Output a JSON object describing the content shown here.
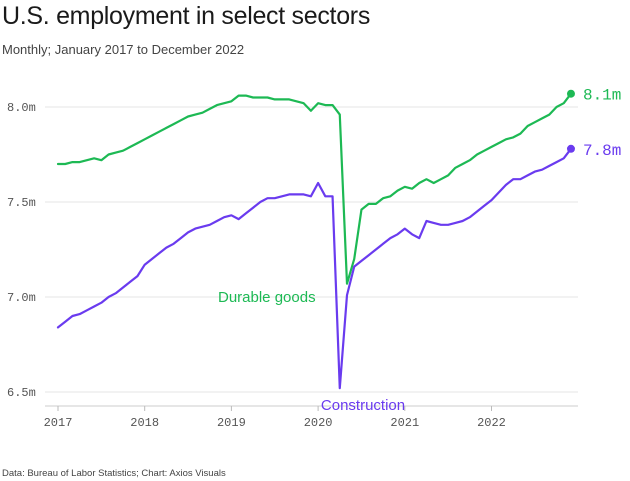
{
  "header": {
    "title": "U.S. employment in select sectors",
    "subtitle": "Monthly; January 2017 to December 2022"
  },
  "footer": {
    "source": "Data: Bureau of Labor Statistics; Chart: Axios Visuals"
  },
  "chart_data": {
    "type": "line",
    "title": "U.S. employment in select sectors",
    "subtitle": "Monthly; January 2017 to December 2022",
    "xlabel": "",
    "ylabel": "",
    "xlim": [
      2017.0,
      2022.917
    ],
    "ylim": [
      6.5,
      8.1
    ],
    "grid": true,
    "yticks": [
      {
        "value": 6.5,
        "label": "6.5m"
      },
      {
        "value": 7.0,
        "label": "7.0m"
      },
      {
        "value": 7.5,
        "label": "7.5m"
      },
      {
        "value": 8.0,
        "label": "8.0m"
      }
    ],
    "xticks": [
      {
        "value": 2017,
        "label": "2017"
      },
      {
        "value": 2018,
        "label": "2018"
      },
      {
        "value": 2019,
        "label": "2019"
      },
      {
        "value": 2020,
        "label": "2020"
      },
      {
        "value": 2021,
        "label": "2021"
      },
      {
        "value": 2022,
        "label": "2022"
      }
    ],
    "series": [
      {
        "name": "Durable goods",
        "color": "#1db954",
        "end_label": "8.1m",
        "start_year": 2017,
        "values": [
          7.7,
          7.7,
          7.71,
          7.71,
          7.72,
          7.73,
          7.72,
          7.75,
          7.76,
          7.77,
          7.79,
          7.81,
          7.83,
          7.85,
          7.87,
          7.89,
          7.91,
          7.93,
          7.95,
          7.96,
          7.97,
          7.99,
          8.01,
          8.02,
          8.03,
          8.06,
          8.06,
          8.05,
          8.05,
          8.05,
          8.04,
          8.04,
          8.04,
          8.03,
          8.02,
          7.98,
          8.02,
          8.01,
          8.01,
          7.96,
          7.07,
          7.2,
          7.46,
          7.49,
          7.49,
          7.52,
          7.53,
          7.56,
          7.58,
          7.57,
          7.6,
          7.62,
          7.6,
          7.62,
          7.64,
          7.68,
          7.7,
          7.72,
          7.75,
          7.77,
          7.79,
          7.81,
          7.83,
          7.84,
          7.86,
          7.9,
          7.92,
          7.94,
          7.96,
          8.0,
          8.02,
          8.07
        ]
      },
      {
        "name": "Construction",
        "color": "#6a3bef",
        "end_label": "7.8m",
        "start_year": 2017,
        "values": [
          6.84,
          6.87,
          6.9,
          6.91,
          6.93,
          6.95,
          6.97,
          7.0,
          7.02,
          7.05,
          7.08,
          7.11,
          7.17,
          7.2,
          7.23,
          7.26,
          7.28,
          7.31,
          7.34,
          7.36,
          7.37,
          7.38,
          7.4,
          7.42,
          7.43,
          7.41,
          7.44,
          7.47,
          7.5,
          7.52,
          7.52,
          7.53,
          7.54,
          7.54,
          7.54,
          7.53,
          7.6,
          7.53,
          7.53,
          6.52,
          7.01,
          7.16,
          7.19,
          7.22,
          7.25,
          7.28,
          7.31,
          7.33,
          7.36,
          7.33,
          7.31,
          7.4,
          7.39,
          7.38,
          7.38,
          7.39,
          7.4,
          7.42,
          7.45,
          7.48,
          7.51,
          7.55,
          7.59,
          7.62,
          7.62,
          7.64,
          7.66,
          7.67,
          7.69,
          7.71,
          7.73,
          7.78
        ]
      }
    ],
    "annotations": [
      {
        "text": "Durable goods",
        "series": "Durable goods"
      },
      {
        "text": "Construction",
        "series": "Construction"
      }
    ]
  }
}
